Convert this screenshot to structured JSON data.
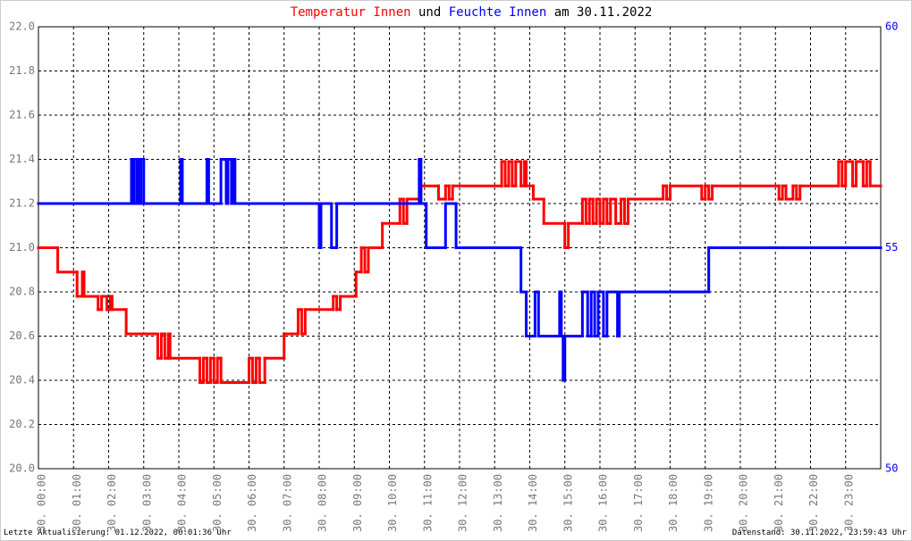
{
  "chart_data": {
    "type": "step",
    "title_parts": [
      {
        "text": "Temperatur Innen",
        "color": "#ff0000"
      },
      {
        "text": "und",
        "color": "#000000"
      },
      {
        "text": "Feuchte Innen",
        "color": "#0000ff"
      },
      {
        "text": "am 30.11.2022",
        "color": "#000000"
      }
    ],
    "footer_left": "Letzte Aktualisierung: 01.12.2022, 00:01:36 Uhr",
    "footer_right": "Datenstand: 30.11.2022, 23:59:43 Uhr",
    "xlim": [
      0,
      24
    ],
    "xticks": [
      {
        "value": 0,
        "label": "30. 00:00"
      },
      {
        "value": 1,
        "label": "30. 01:00"
      },
      {
        "value": 2,
        "label": "30. 02:00"
      },
      {
        "value": 3,
        "label": "30. 03:00"
      },
      {
        "value": 4,
        "label": "30. 04:00"
      },
      {
        "value": 5,
        "label": "30. 05:00"
      },
      {
        "value": 6,
        "label": "30. 06:00"
      },
      {
        "value": 7,
        "label": "30. 07:00"
      },
      {
        "value": 8,
        "label": "30. 08:00"
      },
      {
        "value": 9,
        "label": "30. 09:00"
      },
      {
        "value": 10,
        "label": "30. 10:00"
      },
      {
        "value": 11,
        "label": "30. 11:00"
      },
      {
        "value": 12,
        "label": "30. 12:00"
      },
      {
        "value": 13,
        "label": "30. 13:00"
      },
      {
        "value": 14,
        "label": "30. 14:00"
      },
      {
        "value": 15,
        "label": "30. 15:00"
      },
      {
        "value": 16,
        "label": "30. 16:00"
      },
      {
        "value": 17,
        "label": "30. 17:00"
      },
      {
        "value": 18,
        "label": "30. 18:00"
      },
      {
        "value": 19,
        "label": "30. 19:00"
      },
      {
        "value": 20,
        "label": "30. 20:00"
      },
      {
        "value": 21,
        "label": "30. 21:00"
      },
      {
        "value": 22,
        "label": "30. 22:00"
      },
      {
        "value": 23,
        "label": "30. 23:00"
      }
    ],
    "ylim": [
      20,
      22
    ],
    "yticks": [
      {
        "value": 20,
        "label": "20.0"
      },
      {
        "value": 20.2,
        "label": "20.2"
      },
      {
        "value": 20.4,
        "label": "20.4"
      },
      {
        "value": 20.6,
        "label": "20.6"
      },
      {
        "value": 20.8,
        "label": "20.8"
      },
      {
        "value": 21,
        "label": "21.0"
      },
      {
        "value": 21.2,
        "label": "21.2"
      },
      {
        "value": 21.4,
        "label": "21.4"
      },
      {
        "value": 21.6,
        "label": "21.6"
      },
      {
        "value": 21.8,
        "label": "21.8"
      },
      {
        "value": 22,
        "label": "22.0"
      }
    ],
    "y2lim": [
      50,
      60
    ],
    "y2ticks": [
      50,
      55,
      60
    ],
    "grid": true,
    "series": [
      {
        "name": "Temperatur Innen",
        "color": "#ff0000",
        "x": [
          0,
          0.55,
          1.1,
          1.25,
          1.3,
          1.7,
          1.8,
          1.95,
          2.05,
          2.1,
          2.5,
          3.4,
          3.5,
          3.6,
          3.7,
          3.75,
          4.6,
          4.7,
          4.8,
          4.9,
          5.0,
          5.1,
          5.2,
          6.0,
          6.1,
          6.2,
          6.3,
          6.45,
          7.0,
          7.4,
          7.5,
          7.6,
          8.4,
          8.5,
          8.6,
          9.05,
          9.2,
          9.3,
          9.4,
          9.8,
          10.3,
          10.4,
          10.5,
          10.9,
          11.4,
          11.6,
          11.7,
          11.8,
          13.2,
          13.3,
          13.4,
          13.5,
          13.6,
          13.75,
          13.85,
          13.9,
          14.1,
          14.4,
          15.0,
          15.1,
          15.5,
          15.6,
          15.7,
          15.8,
          15.9,
          16.0,
          16.1,
          16.2,
          16.3,
          16.45,
          16.6,
          16.7,
          16.8,
          17.8,
          17.9,
          18.0,
          18.9,
          19.0,
          19.1,
          19.2,
          21.1,
          21.2,
          21.3,
          21.5,
          21.6,
          21.7,
          22.8,
          22.9,
          23.0,
          23.2,
          23.3,
          23.5,
          23.6,
          23.7
        ],
        "values": [
          21.0,
          20.89,
          20.78,
          20.89,
          20.78,
          20.72,
          20.78,
          20.72,
          20.78,
          20.72,
          20.61,
          20.5,
          20.61,
          20.5,
          20.61,
          20.5,
          20.39,
          20.5,
          20.39,
          20.5,
          20.39,
          20.5,
          20.39,
          20.5,
          20.39,
          20.5,
          20.39,
          20.5,
          20.61,
          20.72,
          20.61,
          20.72,
          20.78,
          20.72,
          20.78,
          20.89,
          21.0,
          20.89,
          21.0,
          21.11,
          21.22,
          21.11,
          21.22,
          21.28,
          21.22,
          21.28,
          21.22,
          21.28,
          21.39,
          21.28,
          21.39,
          21.28,
          21.39,
          21.28,
          21.39,
          21.28,
          21.22,
          21.11,
          21.0,
          21.11,
          21.22,
          21.11,
          21.22,
          21.11,
          21.22,
          21.11,
          21.22,
          21.11,
          21.22,
          21.11,
          21.22,
          21.11,
          21.22,
          21.28,
          21.22,
          21.28,
          21.22,
          21.28,
          21.22,
          21.28,
          21.22,
          21.28,
          21.22,
          21.28,
          21.22,
          21.28,
          21.39,
          21.28,
          21.39,
          21.28,
          21.39,
          21.28,
          21.39,
          21.28
        ]
      },
      {
        "name": "Feuchte Innen",
        "color": "#0000ff",
        "axis": "y2",
        "x": [
          0,
          2.65,
          2.72,
          2.8,
          2.85,
          2.92,
          3.0,
          4.05,
          4.1,
          4.8,
          4.85,
          5.2,
          5.35,
          5.4,
          5.5,
          5.55,
          5.6,
          8.0,
          8.05,
          8.35,
          8.5,
          10.85,
          10.9,
          11.05,
          11.6,
          11.9,
          13.75,
          13.9,
          14.15,
          14.25,
          14.85,
          14.9,
          14.95,
          15.0,
          15.5,
          15.65,
          15.75,
          15.85,
          15.95,
          16.1,
          16.2,
          16.5,
          16.55,
          19.1
        ],
        "values": [
          56,
          57,
          56,
          57,
          56,
          57,
          56,
          57,
          56,
          57,
          56,
          57,
          56,
          57,
          56,
          57,
          56,
          55,
          56,
          55,
          56,
          57,
          56,
          55,
          56,
          55,
          54,
          53,
          54,
          53,
          54,
          53,
          52,
          53,
          54,
          53,
          54,
          53,
          54,
          53,
          54,
          53,
          54,
          55
        ]
      }
    ]
  }
}
